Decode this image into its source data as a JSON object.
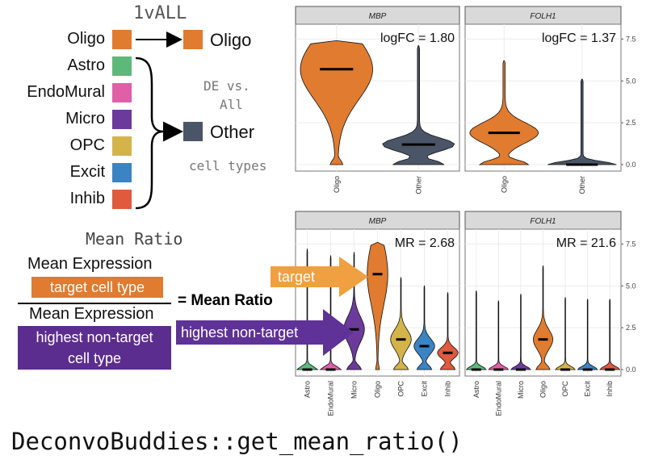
{
  "onevall": {
    "title": "1vALL",
    "left_types": [
      {
        "name": "Oligo",
        "color": "#e07b2f"
      },
      {
        "name": "Astro",
        "color": "#5cb97a"
      },
      {
        "name": "EndoMural",
        "color": "#e05fa6"
      },
      {
        "name": "Micro",
        "color": "#6b3a9b"
      },
      {
        "name": "OPC",
        "color": "#d4b44a"
      },
      {
        "name": "Excit",
        "color": "#3a84c4"
      },
      {
        "name": "Inhib",
        "color": "#e05a3d"
      }
    ],
    "right_oligo": "Oligo",
    "right_other": "Other",
    "de_line1": "DE vs.",
    "de_line2": "All",
    "cell_types_text": "cell types"
  },
  "mean_ratio": {
    "title": "Mean Ratio",
    "numerator_label": "Mean Expression",
    "numerator_box": "target cell type",
    "denominator_label": "Mean Expression",
    "denominator_box_line1": "highest non-target",
    "denominator_box_line2": "cell type",
    "equals": "= Mean Ratio",
    "target_arrow": "target",
    "nontarget_arrow": "highest non-target"
  },
  "function_call": "DeconvoBuddies::get_mean_ratio()",
  "colors": {
    "orange": "#e07b2f",
    "slate": "#4a5568",
    "purple": "#5b2d8e",
    "target_arrow": "#f0a040",
    "nontarget_arrow": "#5e3296",
    "strip_bg": "#d9d9d9"
  },
  "chart_data": [
    {
      "type": "violin",
      "panels": [
        {
          "title": "MBP",
          "annotation": "logFC = 1.80",
          "categories": [
            "Oligo",
            "Other"
          ],
          "medians": [
            5.7,
            1.2
          ],
          "max": [
            7.4,
            7.1
          ]
        },
        {
          "title": "FOLH1",
          "annotation": "logFC = 1.37",
          "categories": [
            "Oligo",
            "Other"
          ],
          "medians": [
            1.9,
            0.0
          ],
          "max": [
            6.2,
            5.1
          ]
        }
      ],
      "yticks": [
        "0.0",
        "2.5",
        "5.0",
        "7.5"
      ],
      "ylim": [
        0,
        8
      ]
    },
    {
      "type": "violin",
      "panels": [
        {
          "title": "MBP",
          "annotation": "MR = 2.68",
          "categories": [
            "Astro",
            "EndoMural",
            "Micro",
            "Oligo",
            "OPC",
            "Excit",
            "Inhib"
          ],
          "medians": [
            0.0,
            0.0,
            2.4,
            5.7,
            1.8,
            1.4,
            1.0
          ],
          "max": [
            7.2,
            6.8,
            7.0,
            7.6,
            5.5,
            5.0,
            4.6
          ]
        },
        {
          "title": "FOLH1",
          "annotation": "MR = 21.6",
          "categories": [
            "Astro",
            "EndoMural",
            "Micro",
            "Oligo",
            "OPC",
            "Excit",
            "Inhib"
          ],
          "medians": [
            0.0,
            0.0,
            0.0,
            1.8,
            0.0,
            0.0,
            0.0
          ],
          "max": [
            4.7,
            4.1,
            4.5,
            6.2,
            4.3,
            4.2,
            4.2
          ]
        }
      ],
      "yticks": [
        "0.0",
        "2.5",
        "5.0",
        "7.5"
      ],
      "ylim": [
        0,
        8
      ]
    }
  ]
}
